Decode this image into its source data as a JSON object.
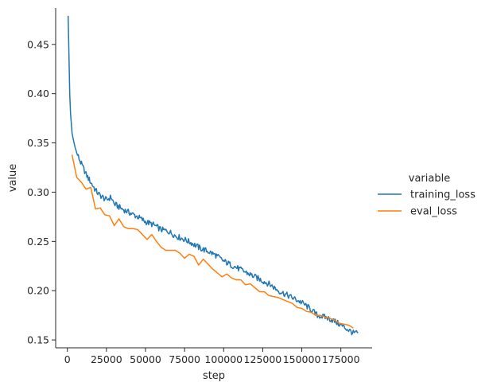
{
  "chart_data": {
    "type": "line",
    "xlabel": "step",
    "ylabel": "value",
    "xlim": [
      -7500,
      195000
    ],
    "ylim": [
      0.142,
      0.487
    ],
    "x_ticks": [
      0,
      25000,
      50000,
      75000,
      100000,
      125000,
      150000,
      175000
    ],
    "y_ticks": [
      0.15,
      0.2,
      0.25,
      0.3,
      0.35,
      0.4,
      0.45
    ],
    "y_tick_labels": [
      "0.15",
      "0.20",
      "0.25",
      "0.30",
      "0.35",
      "0.40",
      "0.45"
    ],
    "grid": false,
    "legend": {
      "title": "variable",
      "placement": "right-outside"
    },
    "series": [
      {
        "name": "training_loss",
        "color": "#1f77b4",
        "x": [
          500,
          1000,
          1500,
          2000,
          2500,
          3000,
          4000,
          5000,
          6000,
          8000,
          10000,
          12000,
          15000,
          18000,
          20000,
          25000,
          28000,
          30000,
          35000,
          40000,
          45000,
          50000,
          55000,
          60000,
          65000,
          70000,
          75000,
          80000,
          85000,
          90000,
          95000,
          100000,
          105000,
          110000,
          115000,
          120000,
          125000,
          130000,
          135000,
          140000,
          145000,
          150000,
          155000,
          160000,
          165000,
          170000,
          175000,
          180000,
          183000,
          186000
        ],
        "y": [
          0.479,
          0.44,
          0.4,
          0.38,
          0.37,
          0.36,
          0.352,
          0.345,
          0.34,
          0.332,
          0.325,
          0.318,
          0.31,
          0.302,
          0.298,
          0.292,
          0.295,
          0.288,
          0.283,
          0.279,
          0.275,
          0.27,
          0.267,
          0.262,
          0.26,
          0.255,
          0.252,
          0.248,
          0.243,
          0.24,
          0.236,
          0.23,
          0.226,
          0.222,
          0.218,
          0.214,
          0.21,
          0.206,
          0.2,
          0.196,
          0.192,
          0.188,
          0.182,
          0.175,
          0.173,
          0.17,
          0.165,
          0.16,
          0.157,
          0.157
        ]
      },
      {
        "name": "eval_loss",
        "color": "#ff7f0e",
        "x": [
          3000,
          6000,
          9000,
          12000,
          15000,
          18000,
          21000,
          24000,
          27000,
          30000,
          33000,
          36000,
          39000,
          42000,
          45000,
          48000,
          51000,
          54000,
          57000,
          60000,
          63000,
          66000,
          69000,
          72000,
          75000,
          78000,
          81000,
          84000,
          87000,
          90000,
          93000,
          96000,
          99000,
          102000,
          105000,
          108000,
          111000,
          114000,
          117000,
          120000,
          123000,
          126000,
          129000,
          132000,
          135000,
          138000,
          141000,
          144000,
          147000,
          150000,
          153000,
          156000,
          159000,
          162000,
          165000,
          168000,
          171000,
          174000,
          177000,
          180000,
          183000
        ],
        "y": [
          0.338,
          0.315,
          0.31,
          0.303,
          0.305,
          0.283,
          0.284,
          0.277,
          0.276,
          0.266,
          0.273,
          0.265,
          0.263,
          0.263,
          0.262,
          0.257,
          0.252,
          0.257,
          0.25,
          0.244,
          0.241,
          0.241,
          0.241,
          0.238,
          0.233,
          0.237,
          0.235,
          0.226,
          0.232,
          0.227,
          0.222,
          0.218,
          0.214,
          0.217,
          0.213,
          0.211,
          0.211,
          0.206,
          0.207,
          0.203,
          0.199,
          0.199,
          0.195,
          0.194,
          0.193,
          0.191,
          0.189,
          0.187,
          0.183,
          0.182,
          0.179,
          0.178,
          0.175,
          0.175,
          0.173,
          0.172,
          0.17,
          0.167,
          0.166,
          0.165,
          0.162
        ]
      }
    ]
  }
}
